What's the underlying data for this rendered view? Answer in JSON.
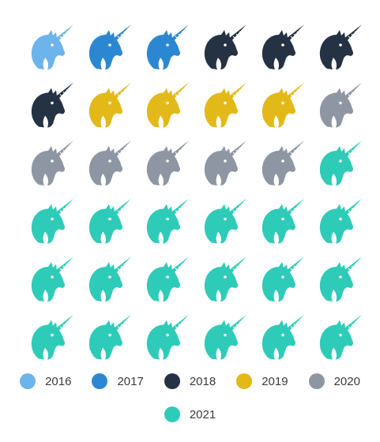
{
  "chart_data": {
    "type": "pictogram",
    "icon": "unicorn-head-icon",
    "series": [
      {
        "name": "2016",
        "value": 1,
        "color": "#6db3ec"
      },
      {
        "name": "2017",
        "value": 2,
        "color": "#2c87d3"
      },
      {
        "name": "2018",
        "value": 4,
        "color": "#253244"
      },
      {
        "name": "2019",
        "value": 4,
        "color": "#e2b919"
      },
      {
        "name": "2020",
        "value": 6,
        "color": "#8d96a2"
      },
      {
        "name": "2021",
        "value": 19,
        "color": "#2ecbb8"
      }
    ],
    "grid": {
      "rows": 6,
      "columns": 6
    },
    "legend_position": "bottom"
  }
}
